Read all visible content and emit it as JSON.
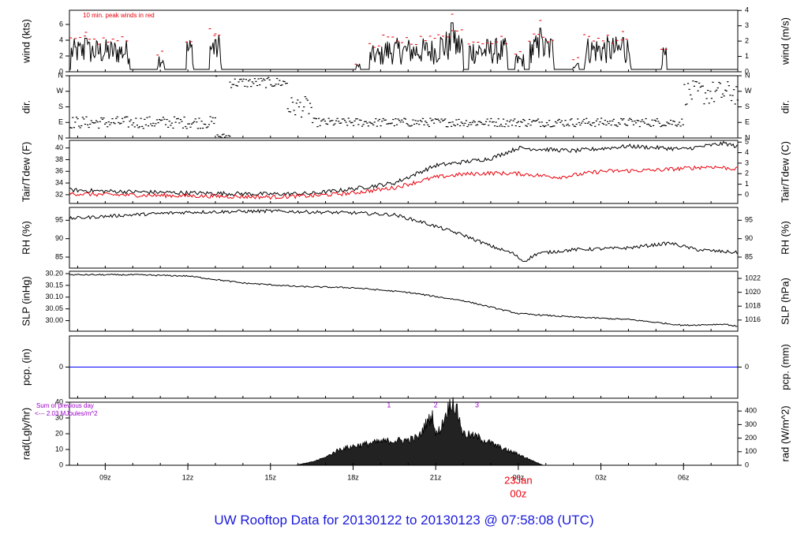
{
  "footer": {
    "title": "UW Rooftop Data for 20130122  to  20130123 @ 07:58:08  (UTC)"
  },
  "colors": {
    "data": "#000000",
    "red": "#e8000b",
    "blue": "#0000ff",
    "purple": "#9a00c8",
    "title": "#1a1adc"
  },
  "chart_data": {
    "type": "line",
    "x_axis": {
      "unit": "hours (UTC)",
      "range_hours": [
        7.7,
        31.97
      ],
      "ticks": [
        {
          "h": 9,
          "label": "09z"
        },
        {
          "h": 12,
          "label": "12z"
        },
        {
          "h": 15,
          "label": "15z"
        },
        {
          "h": 18,
          "label": "18z"
        },
        {
          "h": 21,
          "label": "21z"
        },
        {
          "h": 24,
          "label": "00z"
        },
        {
          "h": 27,
          "label": "03z"
        },
        {
          "h": 30,
          "label": "06z"
        }
      ],
      "date_label": {
        "h": 24,
        "label": "23Jan",
        "sublabel": "00z"
      }
    },
    "panels": [
      {
        "id": "wind",
        "ylabel_left": "wind (kts)",
        "ylabel_right": "wind (m/s)",
        "ylim": [
          0,
          7.8
        ],
        "left_ticks": [
          0,
          2,
          4,
          6
        ],
        "right_scale": 0.5144,
        "right_ticks": [
          0,
          1,
          2,
          3,
          4
        ],
        "annotation": "10 min. peak winds in red",
        "series": [
          {
            "name": "wind",
            "color": "#000000",
            "bursts": [
              [
                7.75,
                9.9,
                3.5
              ],
              [
                10.9,
                11.15,
                2.2
              ],
              [
                11.95,
                12.2,
                3.8
              ],
              [
                12.8,
                13.2,
                4.2
              ],
              [
                18.1,
                18.25,
                1.0
              ],
              [
                18.6,
                19.1,
                2.8
              ],
              [
                19.1,
                21.1,
                3.6
              ],
              [
                21.1,
                22.0,
                4.5
              ],
              [
                22.2,
                23.6,
                3.6
              ],
              [
                23.9,
                24.2,
                2.0
              ],
              [
                24.4,
                25.3,
                4.0
              ],
              [
                26.0,
                26.2,
                1.5
              ],
              [
                26.4,
                28.1,
                3.8
              ],
              [
                29.2,
                29.4,
                2.6
              ]
            ],
            "gust_peaks": [
              [
                21.6,
                7.3
              ],
              [
                24.8,
                6.5
              ],
              [
                27.8,
                5.1
              ],
              [
                13.0,
                4.8
              ],
              [
                8.3,
                5.0
              ]
            ]
          },
          {
            "name": "10 min. peak winds",
            "color": "#e8000b"
          }
        ]
      },
      {
        "id": "dir",
        "ylabel_left": "dir.",
        "ylabel_right": "dir.",
        "ylim": [
          0,
          360
        ],
        "left_tick_labels": [
          "N",
          "E",
          "S",
          "W",
          "N"
        ],
        "right_tick_labels": [
          "N",
          "E",
          "S",
          "W",
          "N"
        ],
        "segments": [
          {
            "from": 7.7,
            "to": 13.0,
            "deg": 90,
            "spread": 35
          },
          {
            "from": 13.0,
            "to": 13.5,
            "deg": 10,
            "spread": 15
          },
          {
            "from": 13.5,
            "to": 15.6,
            "deg": 320,
            "spread": 30
          },
          {
            "from": 15.6,
            "to": 16.5,
            "deg": 180,
            "spread": 60
          },
          {
            "from": 16.5,
            "to": 30.0,
            "deg": 90,
            "spread": 25
          },
          {
            "from": 30.0,
            "to": 31.97,
            "deg": 260,
            "spread": 70
          }
        ]
      },
      {
        "id": "temp",
        "ylabel_left": "Tair/Tdew (F)",
        "ylabel_right": "Tair/Tdew (C)",
        "ylim": [
          30.5,
          41.3
        ],
        "left_ticks": [
          32,
          34,
          36,
          38,
          40
        ],
        "right_ticks_c": [
          0,
          1,
          2,
          3,
          4,
          5
        ],
        "series": [
          {
            "name": "Tair",
            "color": "#000000",
            "points": [
              [
                7.7,
                32.8
              ],
              [
                9.0,
                32.6
              ],
              [
                12.0,
                32.3
              ],
              [
                15.0,
                32.1
              ],
              [
                16.5,
                32.2
              ],
              [
                18.0,
                33.0
              ],
              [
                19.5,
                34.0
              ],
              [
                21.0,
                37.0
              ],
              [
                22.0,
                37.6
              ],
              [
                23.0,
                38.2
              ],
              [
                24.0,
                40.0
              ],
              [
                26.0,
                39.5
              ],
              [
                28.0,
                40.3
              ],
              [
                30.0,
                39.8
              ],
              [
                31.5,
                40.8
              ],
              [
                31.97,
                40.2
              ]
            ]
          },
          {
            "name": "Tdew",
            "color": "#e8000b",
            "points": [
              [
                7.7,
                32.2
              ],
              [
                9.0,
                32.0
              ],
              [
                12.0,
                31.8
              ],
              [
                15.0,
                31.6
              ],
              [
                16.5,
                31.8
              ],
              [
                18.0,
                32.3
              ],
              [
                19.5,
                33.2
              ],
              [
                21.0,
                35.0
              ],
              [
                22.0,
                35.5
              ],
              [
                23.0,
                35.7
              ],
              [
                24.0,
                35.6
              ],
              [
                25.5,
                35.0
              ],
              [
                27.0,
                36.0
              ],
              [
                29.0,
                36.2
              ],
              [
                31.0,
                36.8
              ],
              [
                31.97,
                36.4
              ]
            ]
          }
        ]
      },
      {
        "id": "rh",
        "ylabel_left": "RH (%)",
        "ylabel_right": "RH (%)",
        "ylim": [
          82,
          98.5
        ],
        "left_ticks": [
          85,
          90,
          95
        ],
        "right_ticks": [
          85,
          90,
          95
        ],
        "series": [
          {
            "name": "RH",
            "color": "#000000",
            "points": [
              [
                7.7,
                95.5
              ],
              [
                10.0,
                96.5
              ],
              [
                12.0,
                97.2
              ],
              [
                15.0,
                97.5
              ],
              [
                18.0,
                97.0
              ],
              [
                19.5,
                96.5
              ],
              [
                20.5,
                94.5
              ],
              [
                22.0,
                91.0
              ],
              [
                23.0,
                88.0
              ],
              [
                23.8,
                86.0
              ],
              [
                24.2,
                83.8
              ],
              [
                24.7,
                86.0
              ],
              [
                26.0,
                87.0
              ],
              [
                28.0,
                87.5
              ],
              [
                29.5,
                88.8
              ],
              [
                30.5,
                87.0
              ],
              [
                31.97,
                86.2
              ]
            ]
          }
        ]
      },
      {
        "id": "slp",
        "ylabel_left": "SLP (inHg)",
        "ylabel_right": "SLP (hPa)",
        "ylim": [
          29.955,
          30.21
        ],
        "left_ticks": [
          30.0,
          30.05,
          30.1,
          30.15,
          30.2
        ],
        "left_tick_labels": [
          "30.00",
          "30.05",
          "30.10",
          "30.15",
          "30.20"
        ],
        "right_ticks_hpa": [
          1016,
          1018,
          1020,
          1022
        ],
        "series": [
          {
            "name": "SLP",
            "color": "#000000",
            "points": [
              [
                7.7,
                30.195
              ],
              [
                10.0,
                30.195
              ],
              [
                12.0,
                30.19
              ],
              [
                14.0,
                30.16
              ],
              [
                16.0,
                30.145
              ],
              [
                18.0,
                30.14
              ],
              [
                20.0,
                30.12
              ],
              [
                22.0,
                30.085
              ],
              [
                24.0,
                30.03
              ],
              [
                26.0,
                30.015
              ],
              [
                28.0,
                30.005
              ],
              [
                30.0,
                29.98
              ],
              [
                31.5,
                29.985
              ],
              [
                31.97,
                29.975
              ]
            ]
          }
        ]
      },
      {
        "id": "pcp",
        "ylabel_left": "pcp. (in)",
        "ylabel_right": "pcp. (mm)",
        "ylim": [
          -1,
          1
        ],
        "left_ticks": [
          0
        ],
        "right_ticks": [
          0
        ],
        "series": [
          {
            "name": "pcp",
            "color": "#0000ff",
            "points": [
              [
                7.7,
                0
              ],
              [
                31.97,
                0
              ]
            ]
          }
        ]
      },
      {
        "id": "rad",
        "ylabel_left": "rad(Lgly/hr)",
        "ylabel_right": "rad (W/m^2)",
        "ylim": [
          0,
          40
        ],
        "left_ticks": [
          0,
          10,
          20,
          30,
          40
        ],
        "right_scale": 11.63,
        "right_ticks": [
          0,
          100,
          200,
          300,
          400
        ],
        "annotation_lines": [
          "Sum of previous day",
          "<--- 2.03 MJoules/m^2"
        ],
        "markers": [
          {
            "h": 19.3,
            "label": "1"
          },
          {
            "h": 21.0,
            "label": "2"
          },
          {
            "h": 22.5,
            "label": "3"
          }
        ],
        "series": [
          {
            "name": "rad",
            "color": "#000000",
            "points": [
              [
                15.9,
                0
              ],
              [
                16.5,
                2
              ],
              [
                17.0,
                5
              ],
              [
                17.5,
                10
              ],
              [
                18.0,
                12
              ],
              [
                19.0,
                15
              ],
              [
                20.0,
                16
              ],
              [
                20.4,
                18
              ],
              [
                20.6,
                25
              ],
              [
                20.9,
                32
              ],
              [
                21.0,
                19
              ],
              [
                21.2,
                24
              ],
              [
                21.4,
                34
              ],
              [
                21.6,
                41
              ],
              [
                21.8,
                33
              ],
              [
                22.0,
                20
              ],
              [
                22.5,
                18
              ],
              [
                23.0,
                14
              ],
              [
                23.5,
                10
              ],
              [
                24.0,
                7
              ],
              [
                24.5,
                3
              ],
              [
                24.9,
                0
              ]
            ]
          }
        ]
      }
    ]
  }
}
